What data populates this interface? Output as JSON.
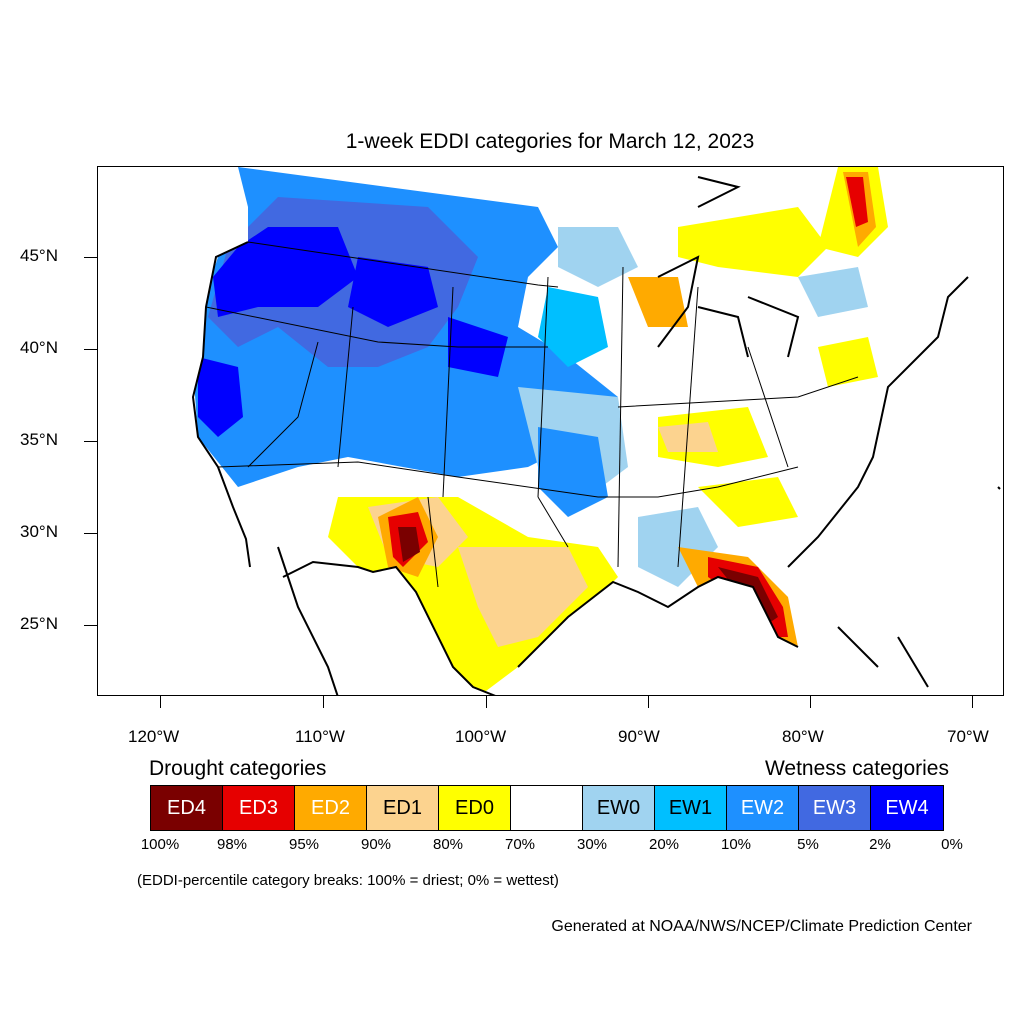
{
  "title": "1-week EDDI categories for March 12, 2023",
  "axes": {
    "lat_labels": [
      "45°N",
      "40°N",
      "35°N",
      "30°N",
      "25°N"
    ],
    "lon_labels": [
      "120°W",
      "110°W",
      "100°W",
      "90°W",
      "80°W",
      "70°W"
    ]
  },
  "legend": {
    "drought_title": "Drought categories",
    "wetness_title": "Wetness categories",
    "categories": [
      {
        "label": "ED4",
        "color": "#7a0000",
        "text_color": "#ffffff"
      },
      {
        "label": "ED3",
        "color": "#e60000",
        "text_color": "#ffffff"
      },
      {
        "label": "ED2",
        "color": "#ffaa00",
        "text_color": "#ffffff"
      },
      {
        "label": "ED1",
        "color": "#fcd38f",
        "text_color": "#000000"
      },
      {
        "label": "ED0",
        "color": "#ffff00",
        "text_color": "#000000"
      },
      {
        "label": "",
        "color": "#ffffff",
        "text_color": "#000000"
      },
      {
        "label": "EW0",
        "color": "#a0d3f0",
        "text_color": "#000000"
      },
      {
        "label": "EW1",
        "color": "#00bfff",
        "text_color": "#000000"
      },
      {
        "label": "EW2",
        "color": "#1e90ff",
        "text_color": "#ffffff"
      },
      {
        "label": "EW3",
        "color": "#4169e1",
        "text_color": "#ffffff"
      },
      {
        "label": "EW4",
        "color": "#0000ff",
        "text_color": "#ffffff"
      }
    ],
    "percent_breaks": [
      "100%",
      "98%",
      "95%",
      "90%",
      "80%",
      "70%",
      "30%",
      "20%",
      "10%",
      "5%",
      "2%",
      "0%"
    ]
  },
  "note": "(EDDI-percentile category breaks: 100% = driest; 0% = wettest)",
  "credit": "Generated at NOAA/NWS/NCEP/Climate Prediction Center"
}
